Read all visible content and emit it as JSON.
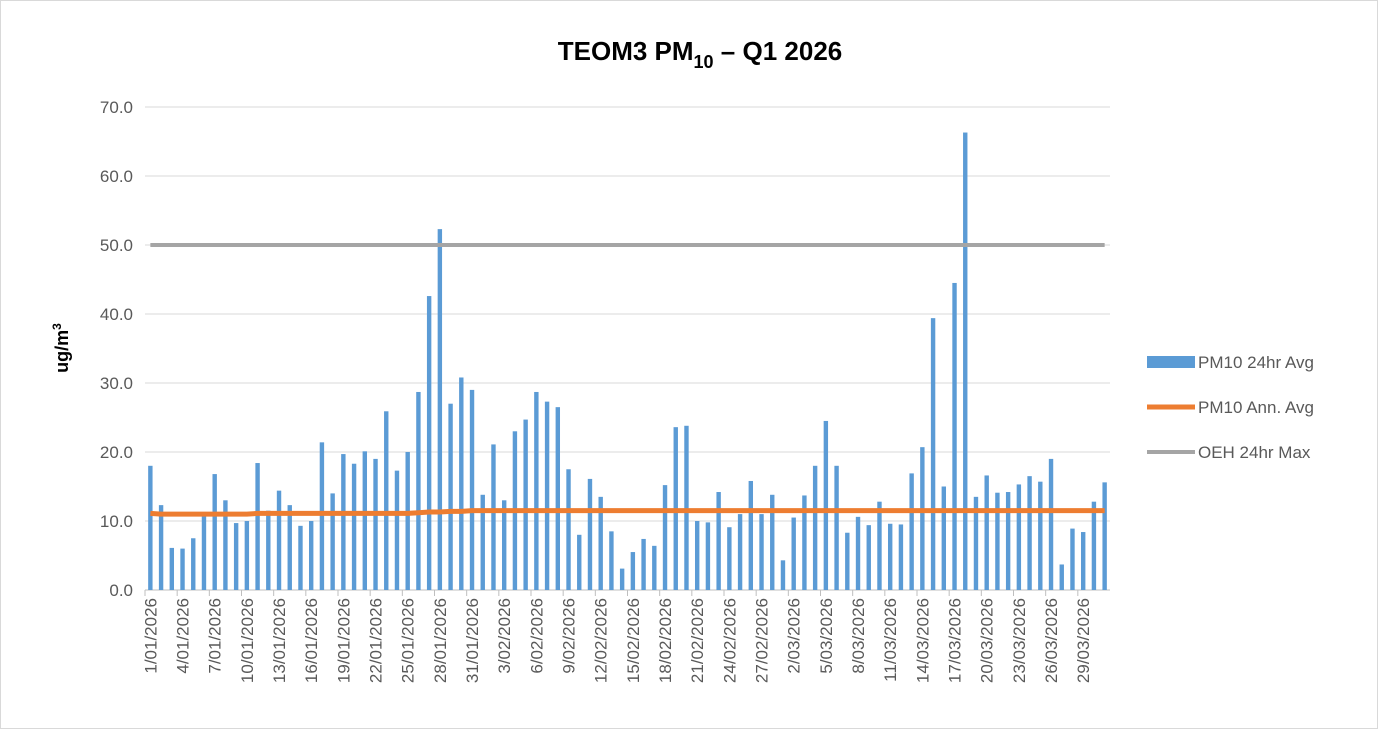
{
  "chart_data": {
    "type": "combo",
    "title": {
      "main": "TEOM3 PM",
      "sub": "10",
      "rest": " – Q1 2026"
    },
    "y_label": {
      "main": "ug/m",
      "sup": "3"
    },
    "categories": [
      "1/01/2026",
      null,
      null,
      "4/01/2026",
      null,
      null,
      "7/01/2026",
      null,
      null,
      "10/01/2026",
      null,
      null,
      "13/01/2026",
      null,
      null,
      "16/01/2026",
      null,
      null,
      "19/01/2026",
      null,
      null,
      "22/01/2026",
      null,
      null,
      "25/01/2026",
      null,
      null,
      "28/01/2026",
      null,
      null,
      "31/01/2026",
      null,
      null,
      "3/02/2026",
      null,
      null,
      "6/02/2026",
      null,
      null,
      "9/02/2026",
      null,
      null,
      "12/02/2026",
      null,
      null,
      "15/02/2026",
      null,
      null,
      "18/02/2026",
      null,
      null,
      "21/02/2026",
      null,
      null,
      "24/02/2026",
      null,
      null,
      "27/02/2026",
      null,
      null,
      "2/03/2026",
      null,
      null,
      "5/03/2026",
      null,
      null,
      "8/03/2026",
      null,
      null,
      "11/03/2026",
      null,
      null,
      "14/03/2026",
      null,
      null,
      "17/03/2026",
      null,
      null,
      "20/03/2026",
      null,
      null,
      "23/03/2026",
      null,
      null,
      "26/03/2026",
      null,
      null,
      "29/03/2026",
      null,
      null
    ],
    "series": [
      {
        "name": "PM10 24hr Avg",
        "type": "bar",
        "color": "#5b9bd5",
        "values": [
          18.0,
          12.3,
          6.1,
          6.0,
          7.5,
          11.0,
          16.8,
          13.0,
          9.7,
          10.0,
          18.4,
          11.5,
          14.4,
          12.3,
          9.3,
          10.0,
          21.4,
          14.0,
          19.7,
          18.3,
          20.1,
          19.0,
          25.9,
          17.3,
          20.0,
          28.7,
          42.6,
          52.3,
          27.0,
          30.8,
          29.0,
          13.8,
          21.1,
          13.0,
          23.0,
          24.7,
          28.7,
          27.3,
          26.5,
          17.5,
          8.0,
          16.1,
          13.5,
          8.5,
          3.1,
          5.5,
          7.4,
          6.4,
          15.2,
          23.6,
          23.8,
          10.0,
          9.8,
          14.2,
          9.1,
          11.0,
          15.8,
          11.0,
          13.8,
          4.3,
          10.5,
          13.7,
          18.0,
          24.5,
          18.0,
          8.3,
          10.6,
          9.4,
          12.8,
          9.6,
          9.5,
          16.9,
          20.7,
          39.4,
          15.0,
          44.5,
          66.3,
          13.5,
          16.6,
          14.1,
          14.2,
          15.3,
          16.5,
          15.7,
          19.0,
          3.7,
          8.9,
          8.4,
          12.8,
          15.6
        ]
      },
      {
        "name": "PM10 Ann. Avg",
        "type": "line",
        "color": "#ed7d31",
        "values": [
          11.1,
          11.0,
          11.0,
          11.0,
          11.0,
          11.0,
          11.0,
          11.0,
          11.0,
          11.0,
          11.1,
          11.1,
          11.1,
          11.1,
          11.1,
          11.1,
          11.1,
          11.1,
          11.1,
          11.1,
          11.1,
          11.1,
          11.1,
          11.1,
          11.1,
          11.2,
          11.3,
          11.3,
          11.4,
          11.4,
          11.5,
          11.5,
          11.5,
          11.5,
          11.5,
          11.5,
          11.5,
          11.5,
          11.5,
          11.5,
          11.5,
          11.5,
          11.5,
          11.5,
          11.5,
          11.5,
          11.5,
          11.5,
          11.5,
          11.5,
          11.5,
          11.5,
          11.5,
          11.5,
          11.5,
          11.5,
          11.5,
          11.5,
          11.5,
          11.5,
          11.5,
          11.5,
          11.5,
          11.5,
          11.5,
          11.5,
          11.5,
          11.5,
          11.5,
          11.5,
          11.5,
          11.5,
          11.5,
          11.5,
          11.5,
          11.5,
          11.5,
          11.5,
          11.5,
          11.5,
          11.5,
          11.5,
          11.5,
          11.5,
          11.5,
          11.5,
          11.5,
          11.5,
          11.5,
          11.5
        ]
      },
      {
        "name": "OEH 24hr Max",
        "type": "line",
        "color": "#a5a5a5",
        "values": [
          50,
          50,
          50,
          50,
          50,
          50,
          50,
          50,
          50,
          50,
          50,
          50,
          50,
          50,
          50,
          50,
          50,
          50,
          50,
          50,
          50,
          50,
          50,
          50,
          50,
          50,
          50,
          50,
          50,
          50,
          50,
          50,
          50,
          50,
          50,
          50,
          50,
          50,
          50,
          50,
          50,
          50,
          50,
          50,
          50,
          50,
          50,
          50,
          50,
          50,
          50,
          50,
          50,
          50,
          50,
          50,
          50,
          50,
          50,
          50,
          50,
          50,
          50,
          50,
          50,
          50,
          50,
          50,
          50,
          50,
          50,
          50,
          50,
          50,
          50,
          50,
          50,
          50,
          50,
          50,
          50,
          50,
          50,
          50,
          50,
          50,
          50,
          50,
          50,
          50
        ]
      }
    ],
    "ylim": [
      0,
      70
    ],
    "yticks": [
      {
        "value": 0,
        "label": "0.0"
      },
      {
        "value": 10,
        "label": "10.0"
      },
      {
        "value": 20,
        "label": "20.0"
      },
      {
        "value": 30,
        "label": "30.0"
      },
      {
        "value": 40,
        "label": "40.0"
      },
      {
        "value": 50,
        "label": "50.0"
      },
      {
        "value": 60,
        "label": "60.0"
      },
      {
        "value": 70,
        "label": "70.0"
      }
    ],
    "grid": true,
    "legend": "right"
  }
}
